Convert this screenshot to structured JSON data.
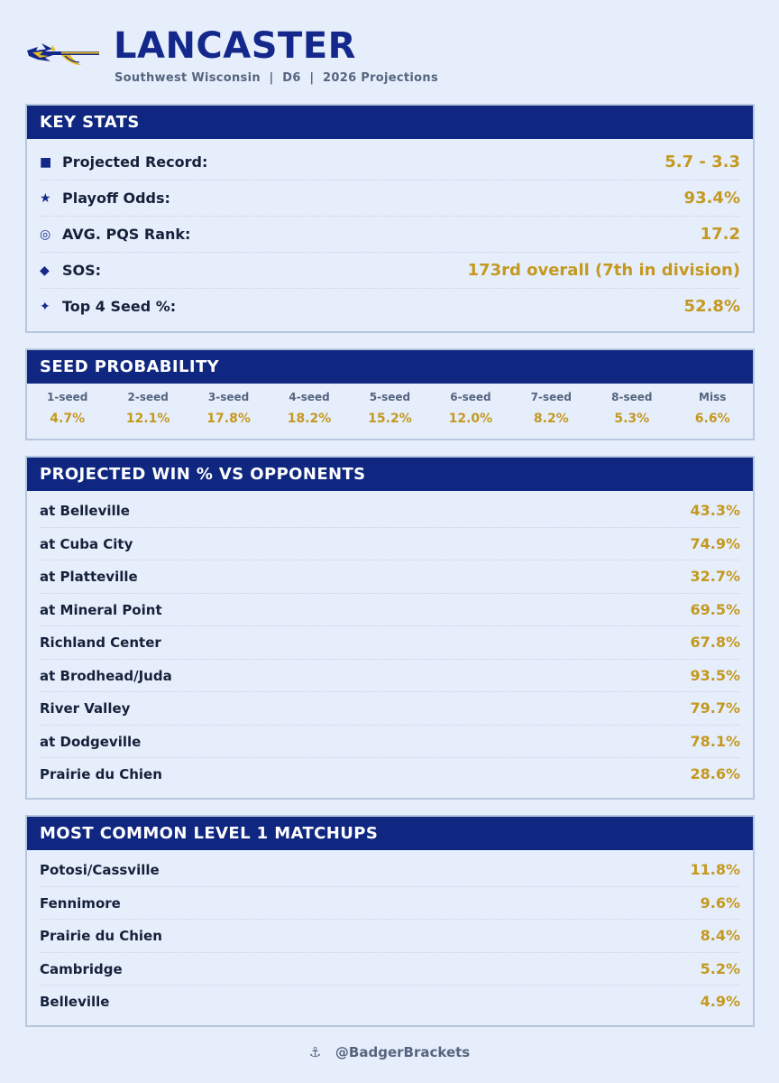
{
  "header": {
    "team_name": "LANCASTER",
    "subline": "Southwest Wisconsin  |  D6  |  2026 Projections",
    "logo_icon": "spear-logo-icon"
  },
  "key_stats": {
    "title": "KEY STATS",
    "rows": [
      {
        "icon": "square-icon",
        "glyph": "■",
        "label": "Projected Record:",
        "value": "5.7 - 3.3"
      },
      {
        "icon": "star-icon",
        "glyph": "★",
        "label": "Playoff Odds:",
        "value": "93.4%"
      },
      {
        "icon": "target-icon",
        "glyph": "◎",
        "label": "AVG. PQS Rank:",
        "value": "17.2"
      },
      {
        "icon": "diamond-icon",
        "glyph": "◆",
        "label": "SOS:",
        "value": "173rd overall (7th in division)"
      },
      {
        "icon": "sparkle-icon",
        "glyph": "✦",
        "label": "Top 4 Seed %:",
        "value": "52.8%"
      }
    ]
  },
  "seed_probability": {
    "title": "SEED PROBABILITY",
    "seeds": [
      {
        "label": "1-seed",
        "value": "4.7%"
      },
      {
        "label": "2-seed",
        "value": "12.1%"
      },
      {
        "label": "3-seed",
        "value": "17.8%"
      },
      {
        "label": "4-seed",
        "value": "18.2%"
      },
      {
        "label": "5-seed",
        "value": "15.2%"
      },
      {
        "label": "6-seed",
        "value": "12.0%"
      },
      {
        "label": "7-seed",
        "value": "8.2%"
      },
      {
        "label": "8-seed",
        "value": "5.3%"
      },
      {
        "label": "Miss",
        "value": "6.6%"
      }
    ]
  },
  "opponents": {
    "title": "PROJECTED WIN % VS OPPONENTS",
    "rows": [
      {
        "name": "at Belleville",
        "value": "43.3%"
      },
      {
        "name": "at Cuba City",
        "value": "74.9%"
      },
      {
        "name": "at Platteville",
        "value": "32.7%"
      },
      {
        "name": "at Mineral Point",
        "value": "69.5%"
      },
      {
        "name": "Richland Center",
        "value": "67.8%"
      },
      {
        "name": "at Brodhead/Juda",
        "value": "93.5%"
      },
      {
        "name": "River Valley",
        "value": "79.7%"
      },
      {
        "name": "at Dodgeville",
        "value": "78.1%"
      },
      {
        "name": "Prairie du Chien",
        "value": "28.6%"
      }
    ]
  },
  "matchups": {
    "title": "MOST COMMON LEVEL 1 MATCHUPS",
    "rows": [
      {
        "name": "Potosi/Cassville",
        "value": "11.8%"
      },
      {
        "name": "Fennimore",
        "value": "9.6%"
      },
      {
        "name": "Prairie du Chien",
        "value": "8.4%"
      },
      {
        "name": "Cambridge",
        "value": "5.2%"
      },
      {
        "name": "Belleville",
        "value": "4.9%"
      }
    ]
  },
  "footer": {
    "icon": "anchor-icon",
    "glyph": "⚓",
    "handle": "@BadgerBrackets"
  },
  "colors": {
    "navy": "#0f2781",
    "gold": "#c4991f",
    "background": "#e6eefc"
  }
}
